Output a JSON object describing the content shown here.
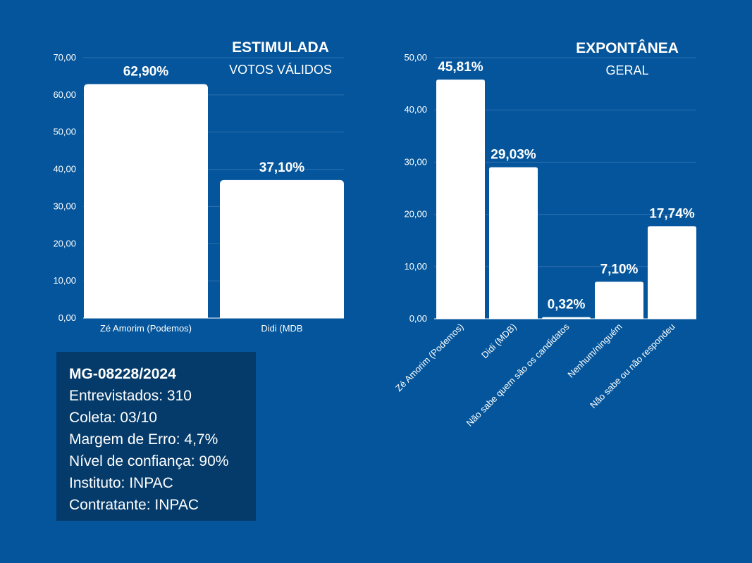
{
  "chart_data": [
    {
      "type": "bar",
      "title": "ESTIMULADA",
      "subtitle": "VOTOS VÁLIDOS",
      "categories": [
        "Zé Amorim (Podemos)",
        "Didi (MDB"
      ],
      "values": [
        62.9,
        37.1
      ],
      "data_labels": [
        "62,90%",
        "37,10%"
      ],
      "ylim": [
        0,
        70
      ],
      "yticks": [
        0,
        10,
        20,
        30,
        40,
        50,
        60,
        70
      ],
      "ytick_labels": [
        "0,00",
        "10,00",
        "20,00",
        "30,00",
        "40,00",
        "50,00",
        "60,00",
        "70,00"
      ],
      "grid": true,
      "bar_color": "#ffffff"
    },
    {
      "type": "bar",
      "title": "EXPONTÂNEA",
      "subtitle": "GERAL",
      "categories": [
        "Zé Amorim (Podemos)",
        "Didi (MDB)",
        "Não sabe quem são os candidatos",
        "Nenhum/ninguém",
        "Não sabe ou não respondeu"
      ],
      "values": [
        45.81,
        29.03,
        0.32,
        7.1,
        17.74
      ],
      "data_labels": [
        "45,81%",
        "29,03%",
        "0,32%",
        "7,10%",
        "17,74%"
      ],
      "ylim": [
        0,
        50
      ],
      "yticks": [
        0,
        10,
        20,
        30,
        40,
        50
      ],
      "ytick_labels": [
        "0,00",
        "10,00",
        "20,00",
        "30,00",
        "40,00",
        "50,00"
      ],
      "grid": true,
      "bar_color": "#ffffff"
    }
  ],
  "info": {
    "code": "MG-08228/2024",
    "interviewed": "Entrevistados: 310",
    "collection": "Coleta: 03/10",
    "margin": "Margem de Erro: 4,7%",
    "confidence": "Nível de confiança: 90%",
    "institute": "Instituto: INPAC",
    "contractor": "Contratante: INPAC"
  },
  "colors": {
    "background": "#04559b",
    "info_box": "#053b6a",
    "bars": "#ffffff"
  }
}
